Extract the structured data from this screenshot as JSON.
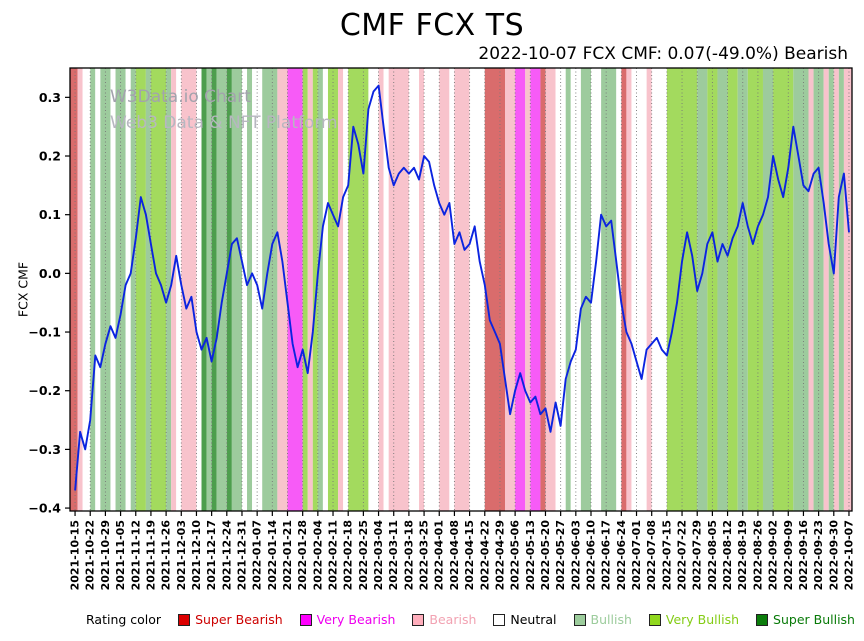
{
  "title": "CMF FCX TS",
  "subtitle": "2022-10-07 FCX CMF: 0.07(-49.0%) Bearish",
  "watermark": {
    "line1": "W3Data.io Chart",
    "line2": "Web3 Data & NFT Platform"
  },
  "legend": {
    "prefix": "Rating color",
    "items": [
      {
        "key": "super-bearish",
        "label": "Super Bearish",
        "color": "#dd0000",
        "text_color": "#cc0000"
      },
      {
        "key": "very-bearish",
        "label": "Very Bearish",
        "color": "#ff00ff",
        "text_color": "#ee00ee"
      },
      {
        "key": "bearish",
        "label": "Bearish",
        "color": "#ffaebc",
        "text_color": "#f2a2b2"
      },
      {
        "key": "neutral",
        "label": "Neutral",
        "color": "#ffffff",
        "text_color": "#000000"
      },
      {
        "key": "bullish",
        "label": "Bullish",
        "color": "#9ccc9c",
        "text_color": "#9ccc9c"
      },
      {
        "key": "very-bullish",
        "label": "Very Bullish",
        "color": "#90d71e",
        "text_color": "#84cc16"
      },
      {
        "key": "super-bullish",
        "label": "Super Bullish",
        "color": "#0b7d0b",
        "text_color": "#087a08"
      }
    ]
  },
  "colors": {
    "line": "#0b24e0",
    "grid": "#777777",
    "axis": "#000000",
    "band": {
      "super_bearish": "#d96c6c",
      "very_bearish": "#f75bf7",
      "bearish": "#f8c3cc",
      "neutral": "#ffffff",
      "bullish": "#9dcb9d",
      "very_bullish": "#a3da5e",
      "super_bullish": "#4d9e4d"
    }
  },
  "chart_data": {
    "type": "line",
    "title": "CMF FCX TS",
    "xlabel": "",
    "ylabel": "FCX CMF",
    "series_name": "FCX CMF",
    "ylim": [
      -0.405,
      0.35
    ],
    "yticks": [
      -0.4,
      -0.3,
      -0.2,
      -0.1,
      0.0,
      0.1,
      0.2,
      0.3
    ],
    "grid": "vertical-dotted-weekly",
    "legend_position": "bottom",
    "points_per_tick": 3,
    "x_tick_labels": [
      "2021-10-15",
      "2021-10-22",
      "2021-10-29",
      "2021-11-05",
      "2021-11-12",
      "2021-11-19",
      "2021-11-26",
      "2021-12-03",
      "2021-12-10",
      "2021-12-17",
      "2021-12-24",
      "2021-12-31",
      "2022-01-07",
      "2022-01-14",
      "2022-01-21",
      "2022-01-28",
      "2022-02-04",
      "2022-02-11",
      "2022-02-18",
      "2022-02-25",
      "2022-03-04",
      "2022-03-11",
      "2022-03-18",
      "2022-03-25",
      "2022-04-01",
      "2022-04-08",
      "2022-04-15",
      "2022-04-22",
      "2022-04-29",
      "2022-05-06",
      "2022-05-13",
      "2022-05-20",
      "2022-05-27",
      "2022-06-03",
      "2022-06-10",
      "2022-06-17",
      "2022-06-24",
      "2022-07-01",
      "2022-07-08",
      "2022-07-15",
      "2022-07-22",
      "2022-07-29",
      "2022-08-05",
      "2022-08-12",
      "2022-08-19",
      "2022-08-26",
      "2022-09-02",
      "2022-09-09",
      "2022-09-16",
      "2022-09-23",
      "2022-09-30",
      "2022-10-07"
    ],
    "values": [
      -0.37,
      -0.27,
      -0.3,
      -0.25,
      -0.14,
      -0.16,
      -0.12,
      -0.09,
      -0.11,
      -0.07,
      -0.02,
      0.0,
      0.06,
      0.13,
      0.1,
      0.05,
      0.0,
      -0.02,
      -0.05,
      -0.02,
      0.03,
      -0.02,
      -0.06,
      -0.04,
      -0.1,
      -0.13,
      -0.11,
      -0.15,
      -0.11,
      -0.05,
      0.0,
      0.05,
      0.06,
      0.02,
      -0.02,
      0.0,
      -0.02,
      -0.06,
      0.0,
      0.05,
      0.07,
      0.02,
      -0.05,
      -0.12,
      -0.16,
      -0.13,
      -0.17,
      -0.1,
      0.0,
      0.08,
      0.12,
      0.1,
      0.08,
      0.13,
      0.15,
      0.25,
      0.22,
      0.17,
      0.28,
      0.31,
      0.32,
      0.25,
      0.18,
      0.15,
      0.17,
      0.18,
      0.17,
      0.18,
      0.16,
      0.2,
      0.19,
      0.15,
      0.12,
      0.1,
      0.12,
      0.05,
      0.07,
      0.04,
      0.05,
      0.08,
      0.02,
      -0.02,
      -0.08,
      -0.1,
      -0.12,
      -0.18,
      -0.24,
      -0.2,
      -0.17,
      -0.2,
      -0.22,
      -0.21,
      -0.24,
      -0.23,
      -0.27,
      -0.22,
      -0.26,
      -0.18,
      -0.15,
      -0.13,
      -0.06,
      -0.04,
      -0.05,
      0.02,
      0.1,
      0.08,
      0.09,
      0.02,
      -0.05,
      -0.1,
      -0.12,
      -0.15,
      -0.18,
      -0.13,
      -0.12,
      -0.11,
      -0.13,
      -0.14,
      -0.1,
      -0.05,
      0.02,
      0.07,
      0.03,
      -0.03,
      0.0,
      0.05,
      0.07,
      0.02,
      0.05,
      0.03,
      0.06,
      0.08,
      0.12,
      0.08,
      0.05,
      0.08,
      0.1,
      0.13,
      0.2,
      0.16,
      0.13,
      0.18,
      0.25,
      0.2,
      0.15,
      0.14,
      0.17,
      0.18,
      0.12,
      0.05,
      0.0,
      0.13,
      0.17,
      0.07
    ],
    "bands": [
      [
        -1,
        0.5,
        "super_bearish"
      ],
      [
        0.5,
        1.5,
        "bearish"
      ],
      [
        1.5,
        3,
        "neutral"
      ],
      [
        3,
        4,
        "bullish"
      ],
      [
        4,
        5,
        "neutral"
      ],
      [
        5,
        7,
        "bullish"
      ],
      [
        7,
        8,
        "neutral"
      ],
      [
        8,
        10,
        "bullish"
      ],
      [
        10,
        11,
        "neutral"
      ],
      [
        11,
        12,
        "bullish"
      ],
      [
        12,
        14,
        "very_bullish"
      ],
      [
        14,
        15,
        "bullish"
      ],
      [
        15,
        18,
        "very_bullish"
      ],
      [
        18,
        19,
        "bullish"
      ],
      [
        19,
        20,
        "bearish"
      ],
      [
        20,
        21,
        "neutral"
      ],
      [
        21,
        24,
        "bearish"
      ],
      [
        24,
        25,
        "neutral"
      ],
      [
        25,
        26,
        "super_bullish"
      ],
      [
        26,
        27,
        "bullish"
      ],
      [
        27,
        28,
        "super_bullish"
      ],
      [
        28,
        30,
        "bullish"
      ],
      [
        30,
        31,
        "super_bullish"
      ],
      [
        31,
        33,
        "bullish"
      ],
      [
        33,
        34,
        "neutral"
      ],
      [
        34,
        35,
        "bullish"
      ],
      [
        35,
        37,
        "neutral"
      ],
      [
        37,
        40,
        "bullish"
      ],
      [
        40,
        42,
        "bearish"
      ],
      [
        42,
        45,
        "very_bearish"
      ],
      [
        45,
        46,
        "very_bullish"
      ],
      [
        46,
        47,
        "bearish"
      ],
      [
        47,
        48,
        "very_bullish"
      ],
      [
        48,
        49,
        "bullish"
      ],
      [
        49,
        50,
        "neutral"
      ],
      [
        50,
        52,
        "very_bullish"
      ],
      [
        52,
        53,
        "bearish"
      ],
      [
        53,
        54,
        "neutral"
      ],
      [
        54,
        58,
        "very_bullish"
      ],
      [
        58,
        60,
        "neutral"
      ],
      [
        60,
        61,
        "bearish"
      ],
      [
        61,
        62,
        "neutral"
      ],
      [
        62,
        66,
        "bearish"
      ],
      [
        66,
        68,
        "neutral"
      ],
      [
        68,
        69,
        "bearish"
      ],
      [
        69,
        72,
        "neutral"
      ],
      [
        72,
        74,
        "bearish"
      ],
      [
        74,
        75,
        "neutral"
      ],
      [
        75,
        78,
        "bearish"
      ],
      [
        78,
        81,
        "neutral"
      ],
      [
        81,
        85,
        "super_bearish"
      ],
      [
        85,
        87,
        "bearish"
      ],
      [
        87,
        89,
        "very_bearish"
      ],
      [
        89,
        90,
        "bearish"
      ],
      [
        90,
        92,
        "very_bearish"
      ],
      [
        92,
        93,
        "super_bearish"
      ],
      [
        93,
        95,
        "bearish"
      ],
      [
        95,
        97,
        "neutral"
      ],
      [
        97,
        98,
        "bullish"
      ],
      [
        98,
        100,
        "neutral"
      ],
      [
        100,
        102,
        "bullish"
      ],
      [
        102,
        104,
        "neutral"
      ],
      [
        104,
        107,
        "bullish"
      ],
      [
        107,
        108,
        "neutral"
      ],
      [
        108,
        109,
        "super_bearish"
      ],
      [
        109,
        110,
        "bearish"
      ],
      [
        110,
        113,
        "neutral"
      ],
      [
        113,
        114,
        "bearish"
      ],
      [
        114,
        117,
        "neutral"
      ],
      [
        117,
        123,
        "very_bullish"
      ],
      [
        123,
        125,
        "bullish"
      ],
      [
        125,
        127,
        "very_bullish"
      ],
      [
        127,
        129,
        "bullish"
      ],
      [
        129,
        131,
        "very_bullish"
      ],
      [
        131,
        133,
        "bullish"
      ],
      [
        133,
        136,
        "very_bullish"
      ],
      [
        136,
        138,
        "bullish"
      ],
      [
        138,
        142,
        "very_bullish"
      ],
      [
        142,
        145,
        "bullish"
      ],
      [
        145,
        146,
        "bearish"
      ],
      [
        146,
        148,
        "bullish"
      ],
      [
        148,
        149,
        "bearish"
      ],
      [
        149,
        150,
        "bullish"
      ],
      [
        150,
        151,
        "bearish"
      ],
      [
        151,
        152,
        "bullish"
      ],
      [
        152,
        154,
        "bearish"
      ]
    ]
  }
}
